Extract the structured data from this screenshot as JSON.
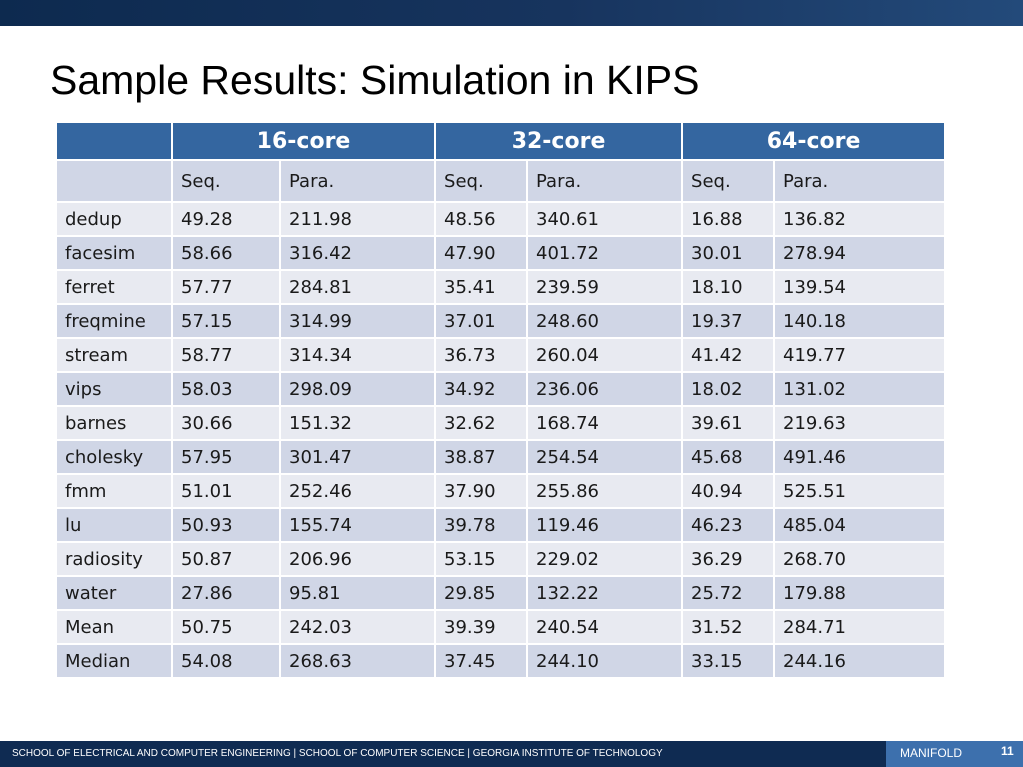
{
  "slide": {
    "title": "Sample Results: Simulation in KIPS",
    "page_number": "11"
  },
  "footer": {
    "institution": "SCHOOL OF ELECTRICAL AND COMPUTER ENGINEERING | SCHOOL OF COMPUTER SCIENCE | GEORGIA INSTITUTE OF TECHNOLOGY",
    "brand": "MANIFOLD"
  },
  "colors": {
    "header_blue": "#3466a0",
    "row_light": "#e8eaf1",
    "row_dark": "#d0d6e6",
    "bar_navy": "#0f2b52"
  },
  "table": {
    "groups": [
      "16-core",
      "32-core",
      "64-core"
    ],
    "subheaders": [
      "Seq.",
      "Para.",
      "Seq.",
      "Para.",
      "Seq.",
      "Para."
    ],
    "rows": [
      {
        "name": "dedup",
        "values": [
          "49.28",
          "211.98",
          "48.56",
          "340.61",
          "16.88",
          "136.82"
        ]
      },
      {
        "name": "facesim",
        "values": [
          "58.66",
          "316.42",
          "47.90",
          "401.72",
          "30.01",
          "278.94"
        ]
      },
      {
        "name": "ferret",
        "values": [
          "57.77",
          "284.81",
          "35.41",
          "239.59",
          "18.10",
          "139.54"
        ]
      },
      {
        "name": "freqmine",
        "values": [
          "57.15",
          "314.99",
          "37.01",
          "248.60",
          "19.37",
          "140.18"
        ]
      },
      {
        "name": "stream",
        "values": [
          "58.77",
          "314.34",
          "36.73",
          "260.04",
          "41.42",
          "419.77"
        ]
      },
      {
        "name": "vips",
        "values": [
          "58.03",
          "298.09",
          "34.92",
          "236.06",
          "18.02",
          "131.02"
        ]
      },
      {
        "name": "barnes",
        "values": [
          "30.66",
          "151.32",
          "32.62",
          "168.74",
          "39.61",
          "219.63"
        ]
      },
      {
        "name": "cholesky",
        "values": [
          "57.95",
          "301.47",
          "38.87",
          "254.54",
          "45.68",
          "491.46"
        ]
      },
      {
        "name": "fmm",
        "values": [
          "51.01",
          "252.46",
          "37.90",
          "255.86",
          "40.94",
          "525.51"
        ]
      },
      {
        "name": "lu",
        "values": [
          "50.93",
          "155.74",
          "39.78",
          "119.46",
          "46.23",
          "485.04"
        ]
      },
      {
        "name": "radiosity",
        "values": [
          "50.87",
          "206.96",
          "53.15",
          "229.02",
          "36.29",
          "268.70"
        ]
      },
      {
        "name": "water",
        "values": [
          "27.86",
          "95.81",
          "29.85",
          "132.22",
          "25.72",
          "179.88"
        ]
      },
      {
        "name": "Mean",
        "values": [
          "50.75",
          "242.03",
          "39.39",
          "240.54",
          "31.52",
          "284.71"
        ]
      },
      {
        "name": "Median",
        "values": [
          "54.08",
          "268.63",
          "37.45",
          "244.10",
          "33.15",
          "244.16"
        ]
      }
    ]
  }
}
